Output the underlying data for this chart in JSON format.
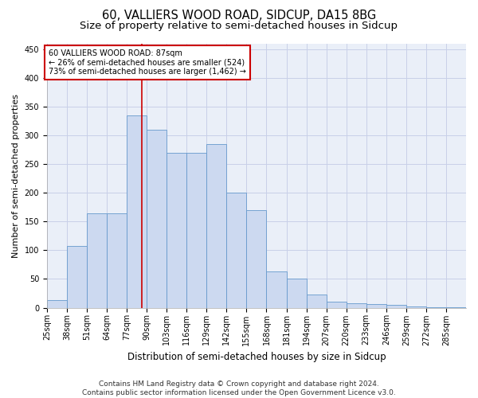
{
  "title_line1": "60, VALLIERS WOOD ROAD, SIDCUP, DA15 8BG",
  "title_line2": "Size of property relative to semi-detached houses in Sidcup",
  "xlabel": "Distribution of semi-detached houses by size in Sidcup",
  "ylabel": "Number of semi-detached properties",
  "footnote_line1": "Contains HM Land Registry data © Crown copyright and database right 2024.",
  "footnote_line2": "Contains public sector information licensed under the Open Government Licence v3.0.",
  "bin_labels": [
    "25sqm",
    "38sqm",
    "51sqm",
    "64sqm",
    "77sqm",
    "90sqm",
    "103sqm",
    "116sqm",
    "129sqm",
    "142sqm",
    "155sqm",
    "168sqm",
    "181sqm",
    "194sqm",
    "207sqm",
    "220sqm",
    "233sqm",
    "246sqm",
    "259sqm",
    "272sqm",
    "285sqm"
  ],
  "bar_heights": [
    13,
    108,
    165,
    165,
    335,
    310,
    270,
    270,
    285,
    200,
    170,
    63,
    50,
    23,
    10,
    8,
    6,
    5,
    2,
    1,
    1
  ],
  "bin_edges": [
    25,
    38,
    51,
    64,
    77,
    90,
    103,
    116,
    129,
    142,
    155,
    168,
    181,
    194,
    207,
    220,
    233,
    246,
    259,
    272,
    285,
    298
  ],
  "bar_color": "#ccd9f0",
  "bar_edge_color": "#6699cc",
  "property_value": 87,
  "property_label": "60 VALLIERS WOOD ROAD: 87sqm",
  "annotation_line1": "← 26% of semi-detached houses are smaller (524)",
  "annotation_line2": "73% of semi-detached houses are larger (1,462) →",
  "vline_color": "#cc0000",
  "annotation_box_edge_color": "#cc0000",
  "ylim": [
    0,
    460
  ],
  "yticks": [
    0,
    50,
    100,
    150,
    200,
    250,
    300,
    350,
    400,
    450
  ],
  "grid_color": "#c8d0e8",
  "bg_color": "#eaeff8",
  "title_fontsize": 10.5,
  "subtitle_fontsize": 9.5,
  "ylabel_fontsize": 8,
  "xlabel_fontsize": 8.5,
  "tick_fontsize": 7,
  "annotation_fontsize": 7,
  "footnote_fontsize": 6.5
}
